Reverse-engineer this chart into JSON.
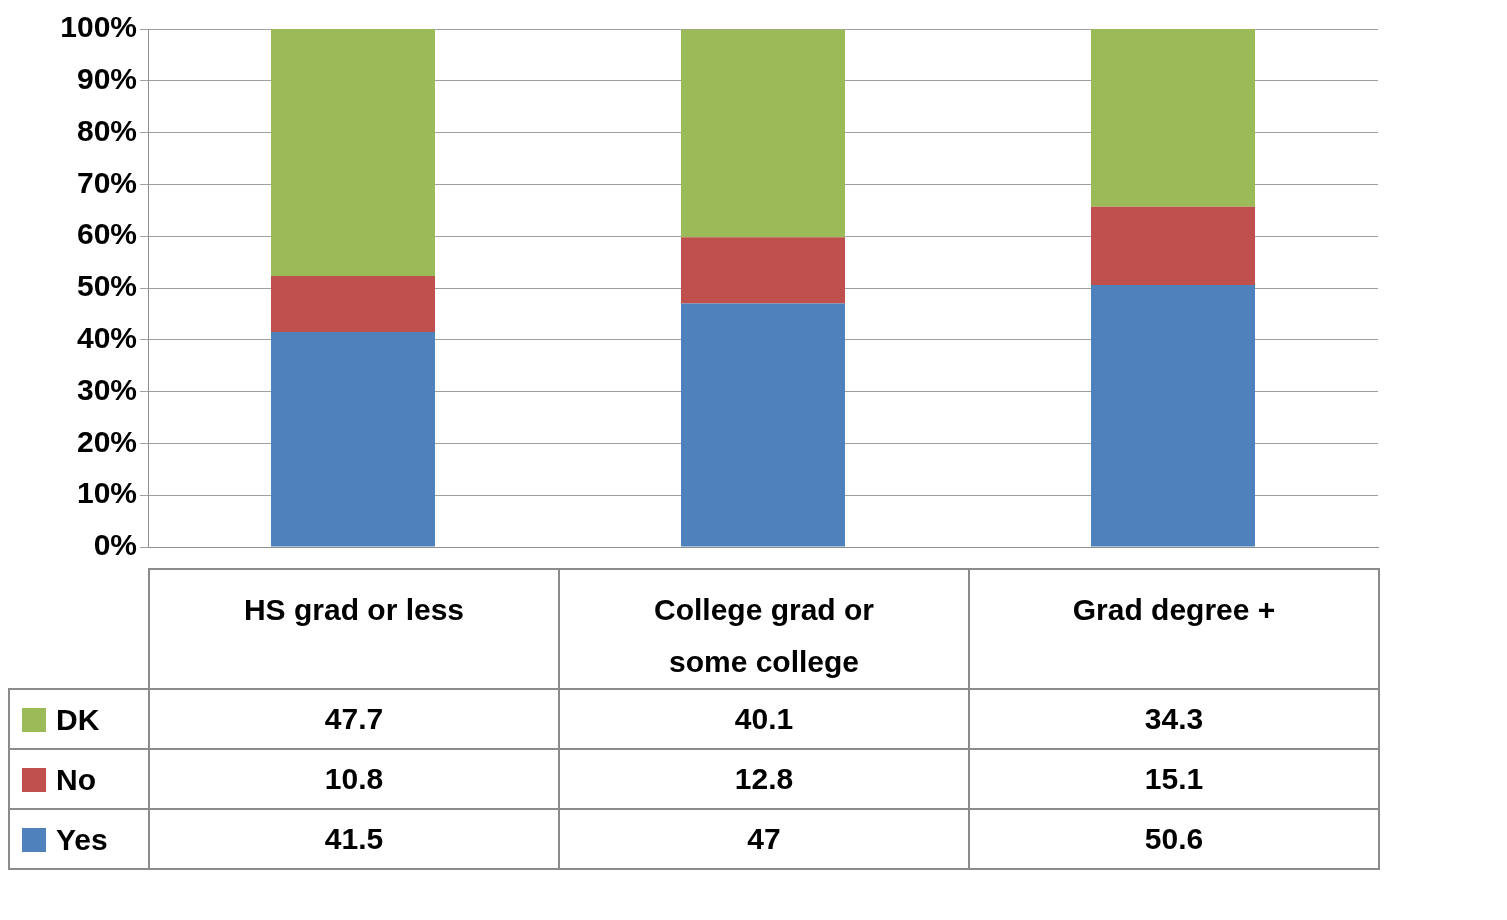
{
  "chart_data": {
    "type": "bar",
    "stacked": true,
    "categories": [
      "HS grad or less",
      "College grad or some college",
      "Grad degree +"
    ],
    "series": [
      {
        "name": "Yes",
        "color": "#4f81bd",
        "values": [
          41.5,
          47,
          50.6
        ]
      },
      {
        "name": "No",
        "color": "#c0504d",
        "values": [
          10.8,
          12.8,
          15.1
        ]
      },
      {
        "name": "DK",
        "color": "#9bbb59",
        "values": [
          47.7,
          40.1,
          34.3
        ]
      }
    ],
    "ylim": [
      0,
      100
    ],
    "yticks": [
      {
        "value": 0,
        "label": "0%"
      },
      {
        "value": 10,
        "label": "10%"
      },
      {
        "value": 20,
        "label": "20%"
      },
      {
        "value": 30,
        "label": "30%"
      },
      {
        "value": 40,
        "label": "40%"
      },
      {
        "value": 50,
        "label": "50%"
      },
      {
        "value": 60,
        "label": "60%"
      },
      {
        "value": 70,
        "label": "70%"
      },
      {
        "value": 80,
        "label": "80%"
      },
      {
        "value": 90,
        "label": "90%"
      },
      {
        "value": 100,
        "label": "100%"
      }
    ],
    "grid": "y",
    "legend": "bottom left",
    "data_labels": true
  }
}
